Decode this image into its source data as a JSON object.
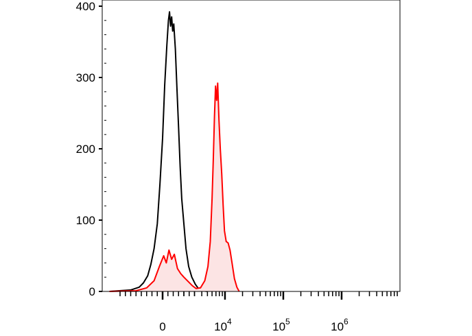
{
  "chart_data": {
    "type": "area",
    "title": "",
    "xlabel": "",
    "ylabel": "",
    "xscale": "biexponential",
    "ylim": [
      0,
      400
    ],
    "yticks": [
      0,
      100,
      200,
      300,
      400
    ],
    "xtick_labels": [
      {
        "base": "0",
        "exp": ""
      },
      {
        "base": "10",
        "exp": "4"
      },
      {
        "base": "10",
        "exp": "5"
      },
      {
        "base": "10",
        "exp": "6"
      }
    ],
    "xtick_positions": [
      0,
      10000,
      100000,
      1000000
    ],
    "grid": false,
    "legend": "none",
    "series": [
      {
        "color": "#000000",
        "fill": "none",
        "points": [
          [
            -5000,
            0
          ],
          [
            -3000,
            2
          ],
          [
            -2200,
            6
          ],
          [
            -1800,
            12
          ],
          [
            -1400,
            22
          ],
          [
            -1100,
            38
          ],
          [
            -800,
            60
          ],
          [
            -500,
            95
          ],
          [
            -250,
            150
          ],
          [
            0,
            215
          ],
          [
            200,
            290
          ],
          [
            400,
            345
          ],
          [
            550,
            380
          ],
          [
            650,
            392
          ],
          [
            750,
            372
          ],
          [
            850,
            385
          ],
          [
            950,
            365
          ],
          [
            1050,
            375
          ],
          [
            1200,
            340
          ],
          [
            1350,
            285
          ],
          [
            1500,
            230
          ],
          [
            1650,
            175
          ],
          [
            1800,
            130
          ],
          [
            2000,
            95
          ],
          [
            2200,
            60
          ],
          [
            2450,
            35
          ],
          [
            2750,
            20
          ],
          [
            3100,
            10
          ],
          [
            3500,
            4
          ],
          [
            4000,
            1
          ],
          [
            5000,
            0
          ]
        ]
      },
      {
        "color": "#ff0000",
        "fill": "#fce4e4",
        "points": [
          [
            -5000,
            0
          ],
          [
            -2500,
            1
          ],
          [
            -1500,
            5
          ],
          [
            -800,
            15
          ],
          [
            -300,
            35
          ],
          [
            100,
            50
          ],
          [
            350,
            40
          ],
          [
            600,
            58
          ],
          [
            850,
            45
          ],
          [
            1100,
            52
          ],
          [
            1400,
            32
          ],
          [
            1700,
            25
          ],
          [
            2000,
            20
          ],
          [
            2400,
            14
          ],
          [
            2800,
            8
          ],
          [
            3200,
            4
          ],
          [
            3800,
            5
          ],
          [
            4500,
            15
          ],
          [
            5100,
            35
          ],
          [
            5600,
            70
          ],
          [
            6000,
            130
          ],
          [
            6300,
            185
          ],
          [
            6600,
            245
          ],
          [
            6900,
            288
          ],
          [
            7200,
            268
          ],
          [
            7500,
            292
          ],
          [
            7900,
            240
          ],
          [
            8300,
            200
          ],
          [
            8800,
            165
          ],
          [
            9300,
            120
          ],
          [
            9800,
            85
          ],
          [
            10500,
            70
          ],
          [
            11300,
            68
          ],
          [
            12200,
            58
          ],
          [
            13200,
            40
          ],
          [
            14500,
            18
          ],
          [
            16000,
            6
          ],
          [
            17500,
            0
          ]
        ]
      }
    ]
  }
}
